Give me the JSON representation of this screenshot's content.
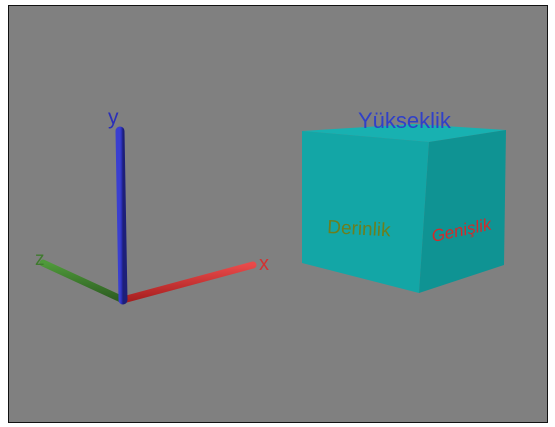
{
  "scene": {
    "axes": {
      "x_label": "x",
      "y_label": "y",
      "z_label": "z"
    },
    "cube": {
      "height_label": "Yükseklik",
      "depth_label": "Derinlik",
      "width_label": "Genişlik"
    },
    "colors": {
      "background": "#808080",
      "x_axis": "#d33232",
      "y_axis": "#2b2fb8",
      "z_axis": "#3f7a2e",
      "cube_front": "#13a7a7",
      "cube_side": "#0f9696",
      "cube_top": "#17b0b0",
      "height_text": "#3040c8",
      "depth_text": "#6b7f1f",
      "width_text": "#d42a2a"
    }
  }
}
